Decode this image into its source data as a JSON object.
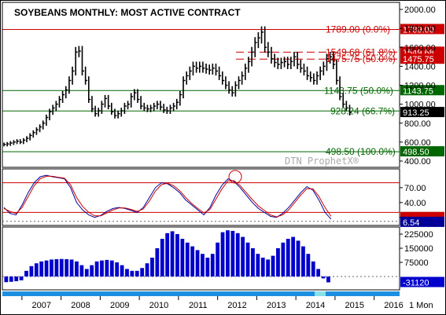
{
  "title": "SOYBEANS MONTHLY: MOST ACTIVE CONTRACT",
  "watermark": "DTN ProphetX®",
  "timeframe_label": "1 Mon",
  "colors": {
    "price_bars": "#000000",
    "resistance": "#cc0000",
    "support": "#006600",
    "stoch_k": "#000099",
    "stoch_d": "#cc0000",
    "histogram": "#0000cc",
    "last_price_box": "#000000",
    "bottom_strip": "#1c8fe0",
    "bottom_strip_highlight": "#8ae0e8"
  },
  "chart_data": [
    {
      "type": "bar",
      "subtype": "ohlc-monthly",
      "title": "SOYBEANS MONTHLY: MOST ACTIVE CONTRACT",
      "x_ticks": [
        "2007",
        "2008",
        "2009",
        "2010",
        "2011",
        "2012",
        "2013",
        "2014",
        "2015",
        "2016"
      ],
      "ylim": [
        400,
        2000
      ],
      "y_ticks": [
        "2000.00",
        "1800.00",
        "1600.00",
        "1400.00",
        "1200.00",
        "1000.00",
        "800.00",
        "600.00",
        "400.00"
      ],
      "last_price": "913.25",
      "levels": [
        {
          "label": "1789.00 (0.0%)",
          "axis_label": "1789.00",
          "value": 1789.0,
          "color": "#cc0000",
          "style": "solid"
        },
        {
          "label": "1549.68 (61.8%)",
          "axis_label": "1549.68",
          "value": 1549.68,
          "color": "#cc0000",
          "style": "dashed"
        },
        {
          "label": "1475.75 (50.0%)",
          "axis_label": "1475.75",
          "value": 1475.75,
          "color": "#cc0000",
          "style": "dashed"
        },
        {
          "label": "1143.75 (50.0%)",
          "axis_label": "1143.75",
          "value": 1143.75,
          "color": "#006600",
          "style": "solid"
        },
        {
          "label": "928.24 (66.7%)",
          "axis_label": "",
          "value": 928.24,
          "color": "#006600",
          "style": "solid"
        },
        {
          "label": "498.50 (100.0%)",
          "axis_label": "498.50",
          "value": 498.5,
          "color": "#006600",
          "style": "solid"
        }
      ],
      "monthly_closes": [
        {
          "year": 2006.5,
          "values": [
            575,
            580,
            590,
            600,
            610,
            600,
            620,
            640,
            670,
            700,
            730,
            760
          ]
        },
        {
          "year": 2007.5,
          "values": [
            800,
            860,
            920,
            960,
            1000,
            1050,
            1100,
            1150,
            1250,
            1350,
            1550,
            1560
          ]
        },
        {
          "year": 2008.5,
          "values": [
            1350,
            1250,
            1050,
            950,
            900,
            930,
            1000,
            1060,
            980,
            920,
            880,
            900
          ]
        },
        {
          "year": 2009.5,
          "values": [
            930,
            980,
            1000,
            1080,
            1120,
            1050,
            980,
            960,
            950,
            960,
            980,
            1000
          ]
        },
        {
          "year": 2010.5,
          "values": [
            970,
            940,
            930,
            960,
            980,
            1020,
            1100,
            1250,
            1300,
            1350,
            1400,
            1380
          ]
        },
        {
          "year": 2011.5,
          "values": [
            1400,
            1380,
            1370,
            1360,
            1380,
            1350,
            1300,
            1250,
            1200,
            1150,
            1120,
            1200
          ]
        },
        {
          "year": 2012.5,
          "values": [
            1250,
            1300,
            1380,
            1450,
            1550,
            1650,
            1700,
            1760,
            1600,
            1550,
            1480,
            1440
          ]
        },
        {
          "year": 2013.5,
          "values": [
            1420,
            1440,
            1450,
            1420,
            1450,
            1500,
            1420,
            1380,
            1350,
            1300,
            1280,
            1250
          ]
        },
        {
          "year": 2014.5,
          "values": [
            1300,
            1350,
            1400,
            1480,
            1500,
            1420,
            1250,
            1080,
            1000,
            960,
            913
          ]
        }
      ]
    },
    {
      "type": "line",
      "subtype": "stochastic",
      "ylim": [
        0,
        100
      ],
      "y_ticks": [
        "70.00",
        "40.00",
        "10.00"
      ],
      "overbought": 80,
      "oversold": 20,
      "last_value": "6.54",
      "series": [
        {
          "color": "#000099",
          "values": [
            30,
            18,
            15,
            35,
            60,
            80,
            92,
            95,
            92,
            90,
            88,
            70,
            40,
            25,
            15,
            10,
            14,
            22,
            28,
            30,
            28,
            24,
            20,
            30,
            50,
            70,
            80,
            78,
            70,
            60,
            45,
            35,
            25,
            15,
            30,
            55,
            75,
            88,
            82,
            70,
            55,
            40,
            28,
            20,
            12,
            10,
            18,
            30,
            45,
            60,
            72,
            65,
            45,
            20,
            6.54
          ]
        },
        {
          "color": "#cc0000",
          "values": [
            28,
            22,
            18,
            30,
            52,
            74,
            88,
            93,
            93,
            91,
            89,
            76,
            50,
            32,
            20,
            13,
            13,
            19,
            25,
            29,
            29,
            26,
            22,
            27,
            43,
            63,
            76,
            79,
            74,
            64,
            50,
            38,
            28,
            19,
            26,
            47,
            68,
            84,
            84,
            74,
            60,
            46,
            33,
            24,
            15,
            11,
            15,
            25,
            40,
            55,
            68,
            68,
            52,
            30,
            12
          ]
        }
      ]
    },
    {
      "type": "bar",
      "subtype": "histogram",
      "ylim": [
        -60000,
        260000
      ],
      "y_ticks": [
        "225000",
        "150000",
        "75000"
      ],
      "last_value": "-31120",
      "values": [
        -30000,
        -28000,
        -25000,
        -20000,
        30000,
        55000,
        70000,
        80000,
        85000,
        90000,
        92000,
        93000,
        92000,
        90000,
        80000,
        60000,
        40000,
        60000,
        80000,
        85000,
        88000,
        85000,
        75000,
        60000,
        40000,
        30000,
        30000,
        45000,
        70000,
        100000,
        150000,
        200000,
        230000,
        240000,
        225000,
        200000,
        180000,
        160000,
        140000,
        120000,
        100000,
        120000,
        180000,
        235000,
        245000,
        242000,
        230000,
        210000,
        180000,
        150000,
        120000,
        100000,
        90000,
        110000,
        150000,
        180000,
        200000,
        210000,
        190000,
        160000,
        120000,
        80000,
        40000,
        -10000,
        -31120
      ]
    }
  ]
}
